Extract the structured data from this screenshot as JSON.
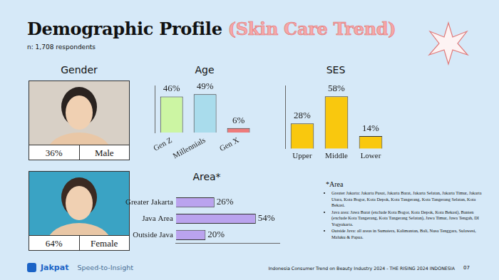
{
  "title": "Demographic Profile",
  "title_highlight": "(Skin Care Trend)",
  "subtitle": "n: 1,708 respondents",
  "gender": {
    "title": "Gender",
    "items": [
      {
        "label": "Male",
        "value": 36,
        "value_label": "36%"
      },
      {
        "label": "Female",
        "value": 64,
        "value_label": "64%"
      }
    ]
  },
  "chart_data": [
    {
      "type": "bar",
      "title": "Age",
      "categories": [
        "Gen Z",
        "Millennials",
        "Gen X"
      ],
      "values": [
        46,
        49,
        6
      ],
      "value_labels": [
        "46%",
        "49%",
        "6%"
      ],
      "colors": [
        "#ccf5a3",
        "#a9dcec",
        "#ee7b7b"
      ],
      "ylim": [
        0,
        60
      ],
      "grid": false,
      "data_labels": true,
      "tick_labels": "x"
    },
    {
      "type": "bar",
      "title": "SES",
      "categories": [
        "Upper",
        "Middle",
        "Lower"
      ],
      "values": [
        28,
        58,
        14
      ],
      "value_labels": [
        "28%",
        "58%",
        "14%"
      ],
      "color": "#f9c80e",
      "ylim": [
        0,
        70
      ],
      "grid": false,
      "data_labels": true,
      "tick_labels": "x"
    },
    {
      "type": "bar",
      "title": "Area*",
      "orientation": "horizontal",
      "categories": [
        "Greater Jakarta",
        "Java Area",
        "Outside Java"
      ],
      "values": [
        26,
        54,
        20
      ],
      "value_labels": [
        "26%",
        "54%",
        "20%"
      ],
      "color": "#baa3ee",
      "xlim": [
        0,
        70
      ],
      "grid": false,
      "data_labels": true,
      "tick_labels": "y"
    }
  ],
  "footnote": {
    "title": "*Area",
    "items": [
      "Greater Jakarta: Jakarta Pusat, Jakarta Barat, Jakarta Selatan, Jakarta Timur, Jakarta Utara, Kota Bogor, Kota Depok, Kota Tangerang, Kota Tangerang Selatan, Kota Bekasi.",
      "Java area: Jawa Barat (exclude Kota Bogor, Kota Depok, Kota Bekasi), Banten (exclude Kota Tangerang, Kota Tangerang Selatan), Jawa Timur, Jawa Tengah, DI Yogyakarta.",
      "Outside Java: all areas in Sumatera, Kalimantan, Bali, Nusa Tenggara, Sulawesi, Maluku & Papua."
    ]
  },
  "footer": {
    "brand": "Jakpat",
    "tagline": "Speed-to-Insight",
    "source": "Indonesia Consumer Trend on Beauty Industry 2024 - THE RISING 2024 INDONESIA",
    "page": "07"
  }
}
